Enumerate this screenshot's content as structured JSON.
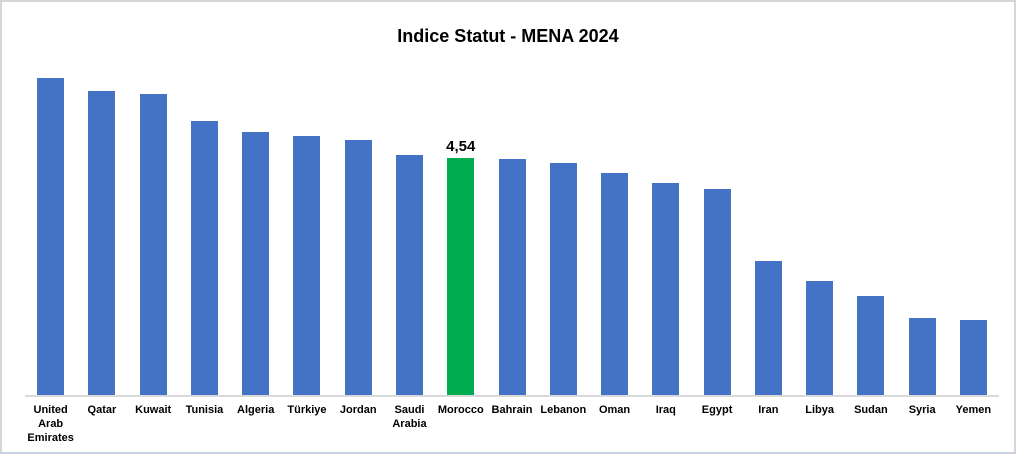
{
  "chart_data": {
    "type": "bar",
    "title": "Indice Statut - MENA 2024",
    "categories": [
      "United Arab Emirates",
      "Qatar",
      "Kuwait",
      "Tunisia",
      "Algeria",
      "Türkiye",
      "Jordan",
      "Saudi Arabia",
      "Morocco",
      "Bahrain",
      "Lebanon",
      "Oman",
      "Iraq",
      "Egypt",
      "Iran",
      "Libya",
      "Sudan",
      "Syria",
      "Yemen"
    ],
    "values": [
      6.07,
      5.82,
      5.77,
      5.25,
      5.04,
      4.96,
      4.89,
      4.6,
      4.54,
      4.52,
      4.44,
      4.26,
      4.07,
      3.95,
      2.57,
      2.18,
      1.9,
      1.48,
      1.44
    ],
    "xlabel": "",
    "ylabel": "",
    "ylim": [
      0,
      6.5
    ],
    "grid": false,
    "y_axis_visible": false,
    "legend": "none",
    "bar_color": "#4472C4",
    "axis_line_color": "#D9D9D9",
    "highlight": {
      "category": "Morocco",
      "color": "#00AC50",
      "data_label": "4,54"
    }
  }
}
